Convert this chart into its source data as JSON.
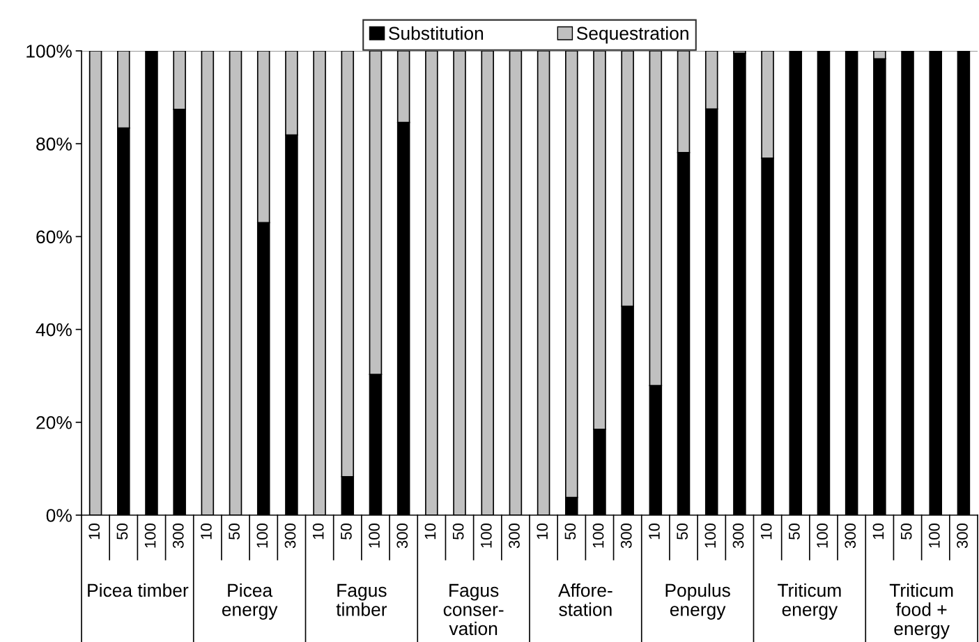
{
  "chart_data": {
    "type": "bar",
    "stacked": true,
    "categories": [
      "10",
      "50",
      "100",
      "300",
      "10",
      "50",
      "100",
      "300",
      "10",
      "50",
      "100",
      "300",
      "10",
      "50",
      "100",
      "300",
      "10",
      "50",
      "100",
      "300",
      "10",
      "50",
      "100",
      "300",
      "10",
      "50",
      "100",
      "300",
      "10",
      "50",
      "100",
      "300"
    ],
    "series": [
      {
        "name": "Substitution",
        "color": "#000000",
        "values": [
          0,
          83.4,
          100,
          87.4,
          0,
          0,
          63.0,
          81.9,
          0,
          8.3,
          30.3,
          84.6,
          0,
          0,
          0,
          0,
          0,
          3.8,
          18.5,
          45.0,
          27.9,
          78.1,
          87.5,
          99.5,
          76.9,
          100,
          100,
          100,
          98.3,
          100,
          100,
          100
        ]
      },
      {
        "name": "Sequestration",
        "color": "#c0c0c0",
        "values": [
          100,
          16.6,
          0,
          12.6,
          100,
          100,
          37.0,
          18.1,
          100,
          91.7,
          69.7,
          15.4,
          100,
          100,
          100,
          100,
          100,
          96.2,
          81.5,
          55.0,
          72.1,
          21.9,
          12.5,
          0.5,
          23.1,
          0,
          0,
          0,
          1.7,
          0,
          0,
          0
        ]
      }
    ],
    "annotations": [
      "Picea timber",
      "Picea\nenergy",
      "Fagus\ntimber",
      "Fagus\nconser-\nvation",
      "Affore-\nstation",
      "Populus\nenergy",
      "Triticum\nenergy",
      "Triticum\nfood +\nenergy"
    ],
    "ylim": [
      0,
      100
    ],
    "yticks": [
      {
        "value": 0,
        "label": "0%"
      },
      {
        "value": 20,
        "label": "20%"
      },
      {
        "value": 40,
        "label": "40%"
      },
      {
        "value": 60,
        "label": "60%"
      },
      {
        "value": 80,
        "label": "80%"
      },
      {
        "value": 100,
        "label": "100%"
      }
    ],
    "grid": false,
    "legend": "top"
  }
}
